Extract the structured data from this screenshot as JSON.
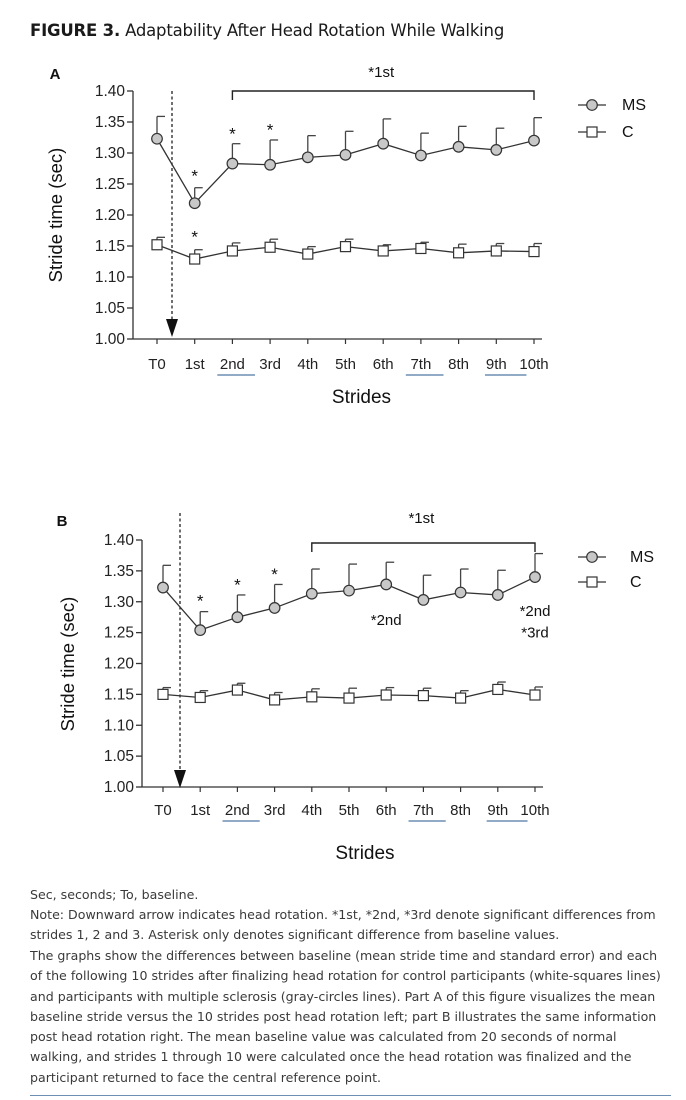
{
  "figure": {
    "label": "FIGURE 3.",
    "title": "Adaptability After Head Rotation While Walking"
  },
  "chart_data": [
    {
      "type": "line",
      "panel": "A",
      "xlabel": "Strides",
      "ylabel": "Stride time (sec)",
      "categories": [
        "T0",
        "1st",
        "2nd",
        "3rd",
        "4th",
        "5th",
        "6th",
        "7th",
        "8th",
        "9th",
        "10th"
      ],
      "ylim": [
        1.0,
        1.4
      ],
      "yticks": [
        "1.00",
        "1.05",
        "1.10",
        "1.15",
        "1.20",
        "1.25",
        "1.30",
        "1.35",
        "1.40"
      ],
      "series": [
        {
          "name": "MS",
          "marker": "circle",
          "values": [
            1.323,
            1.219,
            1.283,
            1.281,
            1.293,
            1.297,
            1.315,
            1.296,
            1.31,
            1.305,
            1.32
          ],
          "errors": [
            0.036,
            0.025,
            0.032,
            0.04,
            0.035,
            0.038,
            0.04,
            0.036,
            0.033,
            0.035,
            0.037
          ]
        },
        {
          "name": "C",
          "marker": "square",
          "values": [
            1.152,
            1.129,
            1.142,
            1.148,
            1.137,
            1.149,
            1.142,
            1.146,
            1.139,
            1.142,
            1.141
          ],
          "errors": [
            0.012,
            0.015,
            0.013,
            0.013,
            0.012,
            0.012,
            0.01,
            0.01,
            0.014,
            0.012,
            0.013
          ]
        }
      ],
      "annotations": [
        {
          "text": "*",
          "x": "1st",
          "y": 1.254
        },
        {
          "text": "*",
          "x": "2nd",
          "y": 1.322
        },
        {
          "text": "*",
          "x": "3rd",
          "y": 1.328
        },
        {
          "text": "*",
          "x": "1st",
          "y": 1.156
        }
      ],
      "bracket": {
        "from": "2nd",
        "to": "10th",
        "label": "*1st"
      },
      "arrow_at": "T0-1st"
    },
    {
      "type": "line",
      "panel": "B",
      "xlabel": "Strides",
      "ylabel": "Stride time (sec)",
      "categories": [
        "T0",
        "1st",
        "2nd",
        "3rd",
        "4th",
        "5th",
        "6th",
        "7th",
        "8th",
        "9th",
        "10th"
      ],
      "ylim": [
        1.0,
        1.4
      ],
      "yticks": [
        "1.00",
        "1.05",
        "1.10",
        "1.15",
        "1.20",
        "1.25",
        "1.30",
        "1.35",
        "1.40"
      ],
      "series": [
        {
          "name": "MS",
          "marker": "circle",
          "values": [
            1.323,
            1.254,
            1.275,
            1.29,
            1.313,
            1.318,
            1.328,
            1.303,
            1.315,
            1.311,
            1.34
          ],
          "errors": [
            0.036,
            0.03,
            0.036,
            0.038,
            0.04,
            0.043,
            0.036,
            0.04,
            0.038,
            0.04,
            0.038
          ]
        },
        {
          "name": "C",
          "marker": "square",
          "values": [
            1.15,
            1.145,
            1.157,
            1.141,
            1.146,
            1.144,
            1.149,
            1.148,
            1.144,
            1.158,
            1.149
          ],
          "errors": [
            0.011,
            0.011,
            0.011,
            0.012,
            0.013,
            0.016,
            0.012,
            0.012,
            0.012,
            0.012,
            0.013
          ]
        }
      ],
      "annotations": [
        {
          "text": "*",
          "x": "1st",
          "y": 1.292
        },
        {
          "text": "*",
          "x": "2nd",
          "y": 1.318
        },
        {
          "text": "*",
          "x": "3rd",
          "y": 1.335
        },
        {
          "text": "*2nd",
          "x": "6th",
          "y": 1.262
        },
        {
          "text": "*2nd",
          "x": "10th",
          "y": 1.277
        },
        {
          "text": "*3rd",
          "x": "10th",
          "y": 1.242
        }
      ],
      "bracket": {
        "from": "4th",
        "to": "10th",
        "label": "*1st"
      },
      "arrow_at": "T0-1st"
    }
  ],
  "caption": {
    "abbrev": "Sec, seconds; To, baseline.",
    "note": "Note: Downward arrow indicates head rotation. *1st, *2nd, *3rd denote significant differences from strides 1, 2 and 3. Asterisk only denotes significant difference from baseline values.",
    "description": "The graphs show the differences between baseline (mean stride time and standard error) and each of the following 10 strides after finalizing head rotation for control participants (white-squares lines) and participants with multiple sclerosis (gray-circles lines). Part A of this figure visualizes the mean baseline stride versus the 10 strides post head rotation left; part B illustrates the same information post head rotation right. The mean baseline value was calculated from 20 seconds of normal walking, and strides 1 through 10 were calculated once the head rotation was finalized and the participant returned to face the central reference point."
  }
}
